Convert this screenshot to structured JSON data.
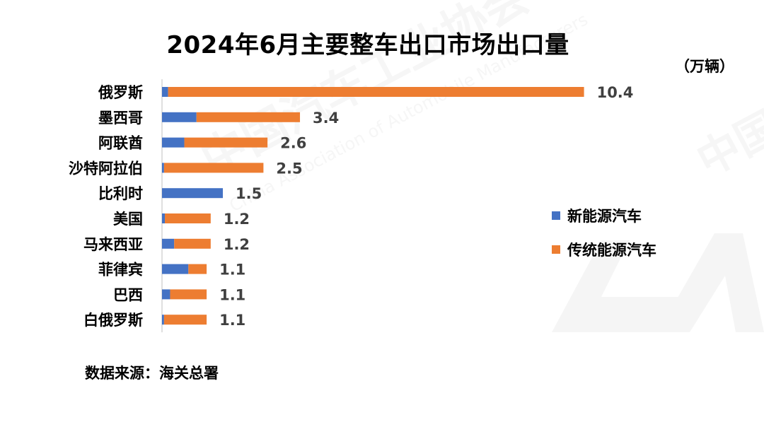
{
  "title": "2024年6月主要整车出口市场出口量",
  "unit": "（万辆）",
  "source": "数据来源：海关总署",
  "colors": {
    "nev": "#4472C4",
    "traditional": "#ED7D31",
    "axis": "#BFBFBF",
    "watermark": "#EDEDED"
  },
  "chart_data": {
    "type": "bar",
    "orientation": "horizontal",
    "stacked": true,
    "categories": [
      "俄罗斯",
      "墨西哥",
      "阿联酋",
      "沙特阿拉伯",
      "比利时",
      "美国",
      "马来西亚",
      "菲律宾",
      "巴西",
      "白俄罗斯"
    ],
    "series": [
      {
        "name": "新能源汽车",
        "values": [
          0.15,
          0.85,
          0.55,
          0.05,
          1.5,
          0.07,
          0.3,
          0.65,
          0.2,
          0.05
        ]
      },
      {
        "name": "传统能源汽车",
        "values": [
          10.25,
          2.55,
          2.05,
          2.45,
          0.0,
          1.13,
          0.9,
          0.45,
          0.9,
          1.05
        ]
      }
    ],
    "totals": [
      "10.4",
      "3.4",
      "2.6",
      "2.5",
      "1.5",
      "1.2",
      "1.2",
      "1.1",
      "1.1",
      "1.1"
    ],
    "xlim": [
      0,
      11
    ],
    "legend_position": "right",
    "grid": false
  },
  "watermark": {
    "org_cn": "中国汽车工业协会",
    "org_en": "China Association of Automobile Manufacturers",
    "logo_text": "CAAM"
  }
}
